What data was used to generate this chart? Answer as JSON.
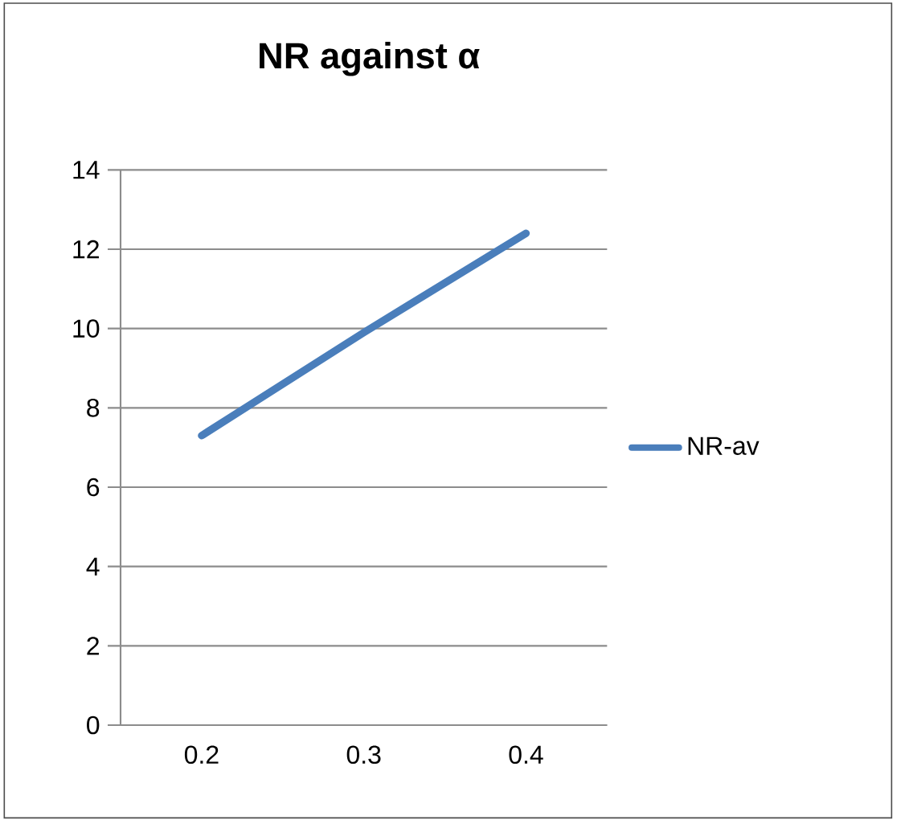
{
  "chart_data": {
    "type": "line",
    "title": "NR against α",
    "categories": [
      "0.2",
      "0.3",
      "0.4"
    ],
    "series": [
      {
        "name": "NR-av",
        "color": "#4a7ebb",
        "values": [
          7.3,
          9.9,
          12.4
        ]
      }
    ],
    "ylim": [
      0,
      14
    ],
    "yticks": [
      0,
      2,
      4,
      6,
      8,
      10,
      12,
      14
    ],
    "grid": "y",
    "legend": "right",
    "marker": "none",
    "line_style": "solid"
  }
}
